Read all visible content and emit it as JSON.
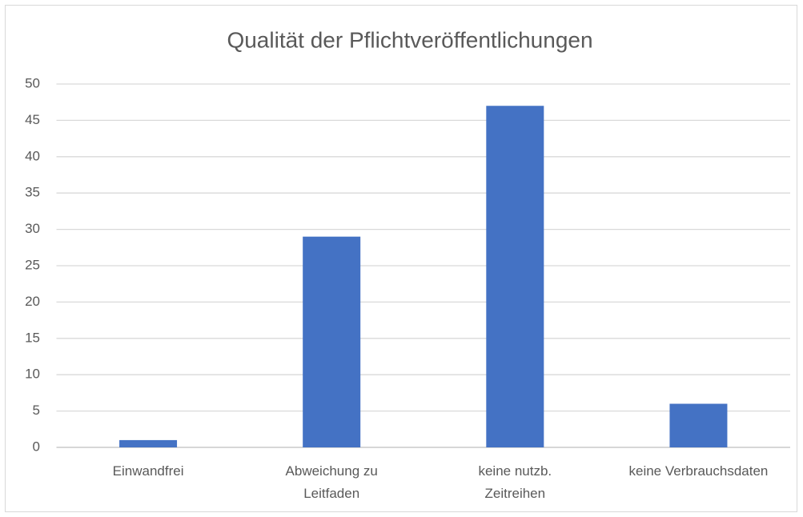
{
  "chart_data": {
    "type": "bar",
    "title": "Qualität der Pflichtveröffentlichungen",
    "categories": [
      "Einwandfrei",
      "Abweichung zu\nLeitfaden",
      "keine nutzb.\nZeitreihen",
      "keine Verbrauchsdaten"
    ],
    "values": [
      1,
      29,
      47,
      6
    ],
    "color": "#4472c4",
    "ylim": [
      0,
      50
    ],
    "yticks": [
      0,
      5,
      10,
      15,
      20,
      25,
      30,
      35,
      40,
      45,
      50
    ],
    "grid": true
  }
}
